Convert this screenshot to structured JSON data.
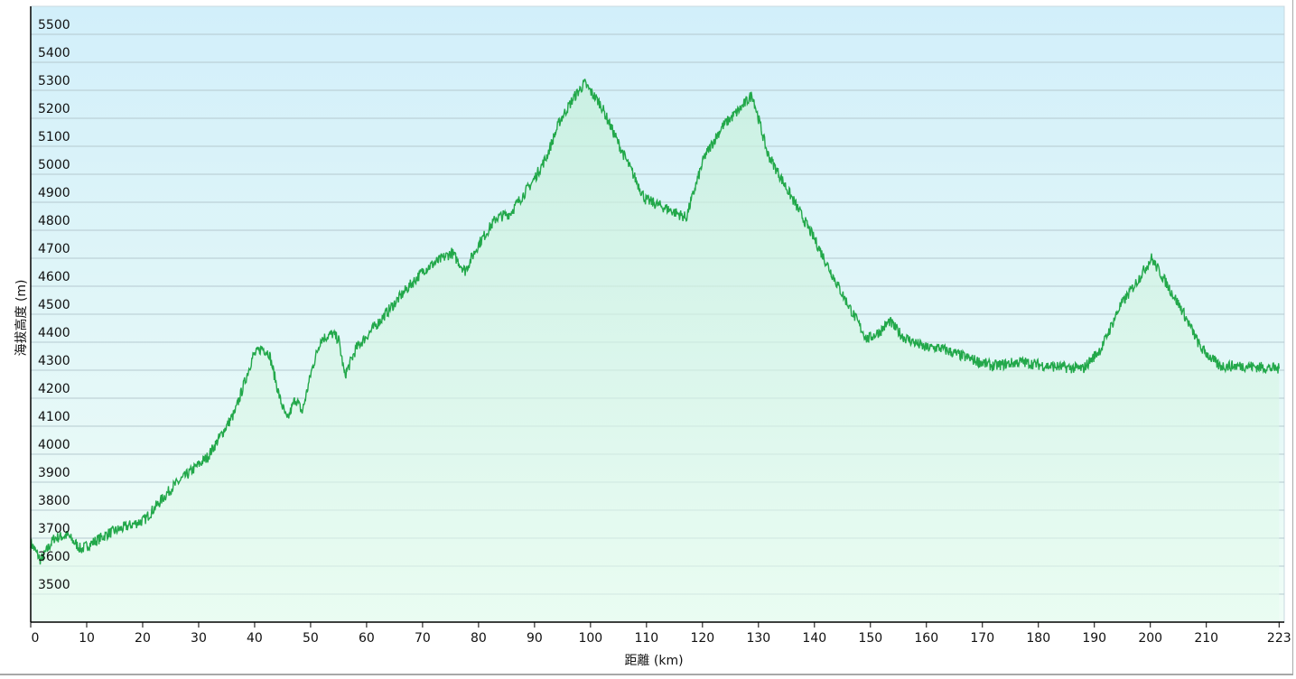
{
  "chart_data": {
    "type": "area",
    "xlabel": "距離 (km)",
    "ylabel": "海拔高度 (m)",
    "xlim": [
      0,
      223.6
    ],
    "ylim": [
      3400,
      5600
    ],
    "x_ticks": [
      0,
      10,
      20,
      30,
      40,
      50,
      60,
      70,
      80,
      90,
      100,
      110,
      120,
      130,
      140,
      150,
      160,
      170,
      180,
      190,
      200,
      210,
      223
    ],
    "y_ticks": [
      3500,
      3600,
      3700,
      3800,
      3900,
      4000,
      4100,
      4200,
      4300,
      4400,
      4500,
      4600,
      4700,
      4800,
      4900,
      5000,
      5100,
      5200,
      5300,
      5400,
      5500
    ],
    "grid": true,
    "colors": {
      "line": "#22a84a",
      "bg_top": "#d2effa",
      "bg_bottom": "#effdf6",
      "fill": "#c8f0d8"
    },
    "series": [
      {
        "x": [
          0,
          1.8,
          4.2,
          6.6,
          9,
          13.9,
          20.3,
          25.2,
          31.6,
          36.5,
          39.7,
          41.3,
          42.6,
          44.5,
          45.8,
          47.3,
          48.5,
          50.2,
          51.8,
          53.9,
          55,
          56.1,
          58.2,
          62.3,
          66.3,
          70.3,
          75.2,
          77.6,
          80,
          83.2,
          85.6,
          89.7,
          92.1,
          94.5,
          96.9,
          98.9,
          101.8,
          105.8,
          109.8,
          113.9,
          117.1,
          120.3,
          123.5,
          126.8,
          128.9,
          131.6,
          135.6,
          139.7,
          144.5,
          149.4,
          151.8,
          153.4,
          155.8,
          159.8,
          162.3,
          167.9,
          171.9,
          176.8,
          181.6,
          188,
          191.3,
          194.5,
          197.7,
          200.2,
          202.6,
          205.8,
          209,
          212.3,
          217.1,
          223
        ],
        "y": [
          3684,
          3620,
          3700,
          3710,
          3660,
          3717,
          3765,
          3880,
          3990,
          4150,
          4350,
          4380,
          4360,
          4200,
          4120,
          4200,
          4150,
          4300,
          4410,
          4430,
          4410,
          4280,
          4380,
          4475,
          4570,
          4660,
          4720,
          4655,
          4750,
          4845,
          4860,
          4975,
          5060,
          5190,
          5270,
          5325,
          5250,
          5075,
          4910,
          4875,
          4845,
          5060,
          5170,
          5235,
          5285,
          5075,
          4930,
          4780,
          4590,
          4410,
          4440,
          4475,
          4420,
          4380,
          4380,
          4340,
          4315,
          4330,
          4315,
          4305,
          4380,
          4525,
          4620,
          4700,
          4620,
          4510,
          4380,
          4315,
          4315,
          4305
        ]
      }
    ]
  }
}
